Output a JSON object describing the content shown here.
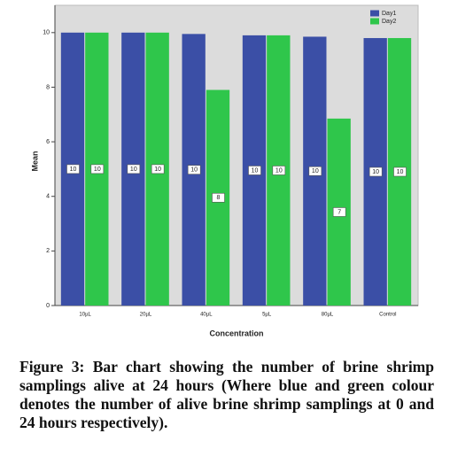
{
  "chart_data": {
    "type": "bar",
    "x_label": "Concentration",
    "y_label": "Mean",
    "categories": [
      "10µL",
      "20µL",
      "40µL",
      "5µL",
      "80µL",
      "Control"
    ],
    "series": [
      {
        "name": "Day1",
        "color": "#3b4fa6",
        "values": [
          10,
          10,
          9.95,
          9.9,
          9.85,
          9.8
        ],
        "value_labels": [
          "10",
          "10",
          "10",
          "10",
          "10",
          "10"
        ]
      },
      {
        "name": "Day2",
        "color": "#2fc64b",
        "values": [
          10,
          10,
          7.9,
          9.9,
          6.85,
          9.8
        ],
        "value_labels": [
          "10",
          "10",
          "8",
          "10",
          "7",
          "10"
        ]
      }
    ],
    "ylim": [
      0,
      11
    ],
    "yticks": [
      0,
      2,
      4,
      6,
      8,
      10
    ],
    "legend": "top-right",
    "grid": false
  },
  "caption": "Figure 3: Bar chart showing the number of brine shrimp samplings alive at 24 hours (Where blue and green colour denotes the number of alive brine shrimp samplings at 0 and 24 hours respectively)."
}
